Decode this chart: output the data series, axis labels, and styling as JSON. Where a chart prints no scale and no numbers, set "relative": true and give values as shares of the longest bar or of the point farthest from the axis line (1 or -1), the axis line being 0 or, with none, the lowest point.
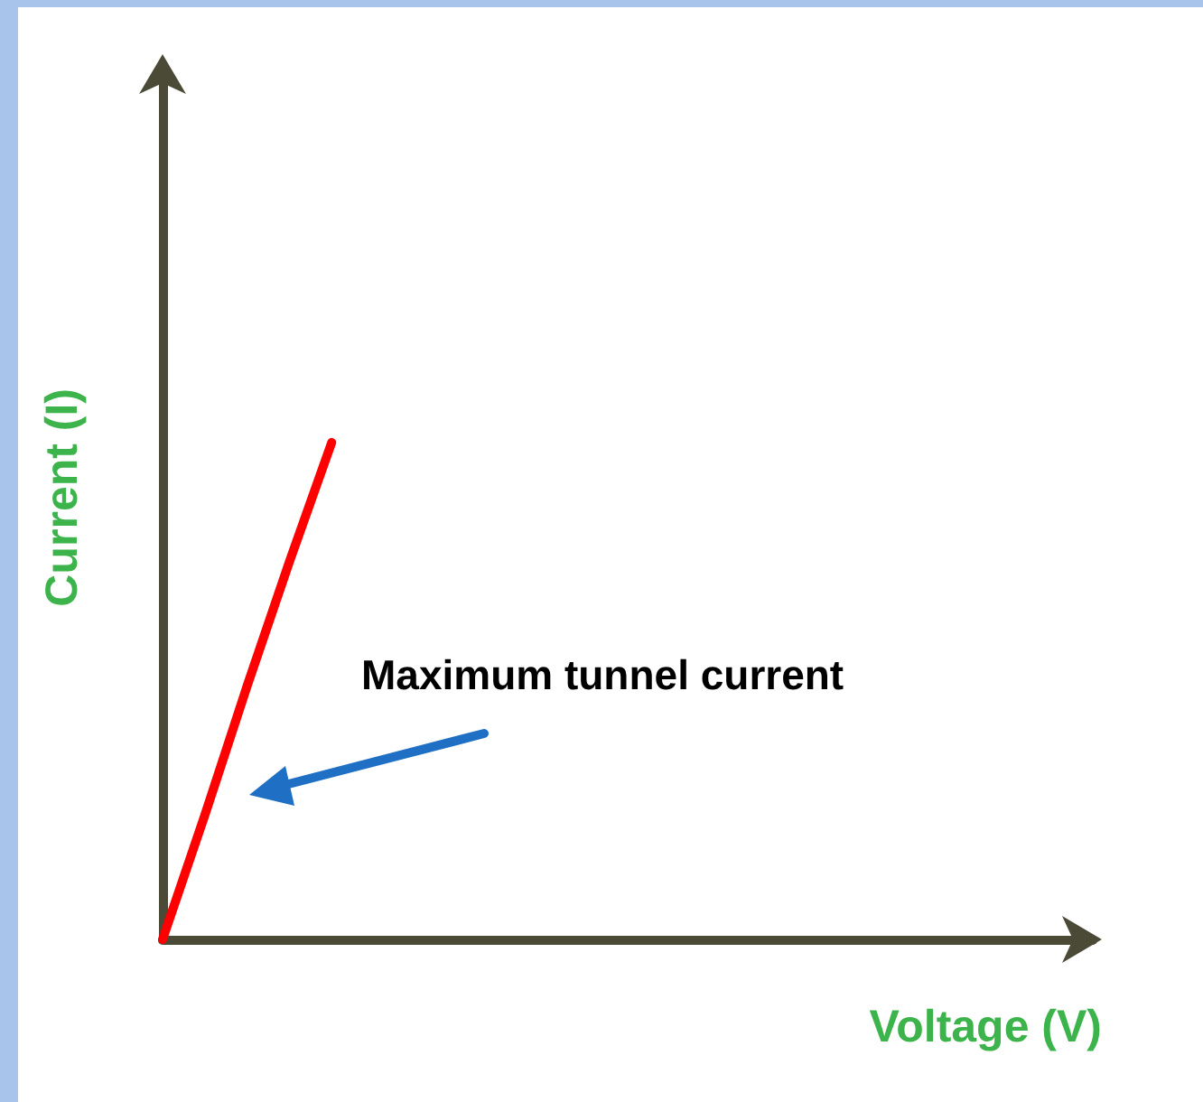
{
  "chart_data": {
    "type": "line",
    "relative": true,
    "xlabel": "Voltage (V)",
    "ylabel": "Current (I)",
    "categories": [
      null,
      null,
      null,
      null,
      null,
      null,
      null,
      null,
      null,
      null,
      null,
      null,
      null,
      null,
      null,
      null,
      null,
      null,
      null,
      null,
      null,
      null,
      null
    ],
    "series": [
      {
        "color": "#ff0000",
        "values": [
          0,
          0.25,
          0.51,
          0.76,
          1,
          null,
          null,
          null,
          null,
          null,
          null,
          null,
          null,
          null,
          null,
          null,
          null,
          null,
          null,
          null,
          null,
          null,
          null
        ]
      }
    ],
    "annotations": [
      "Maximum tunnel current"
    ],
    "grid": false,
    "marker": "none",
    "line_style": "solid"
  }
}
